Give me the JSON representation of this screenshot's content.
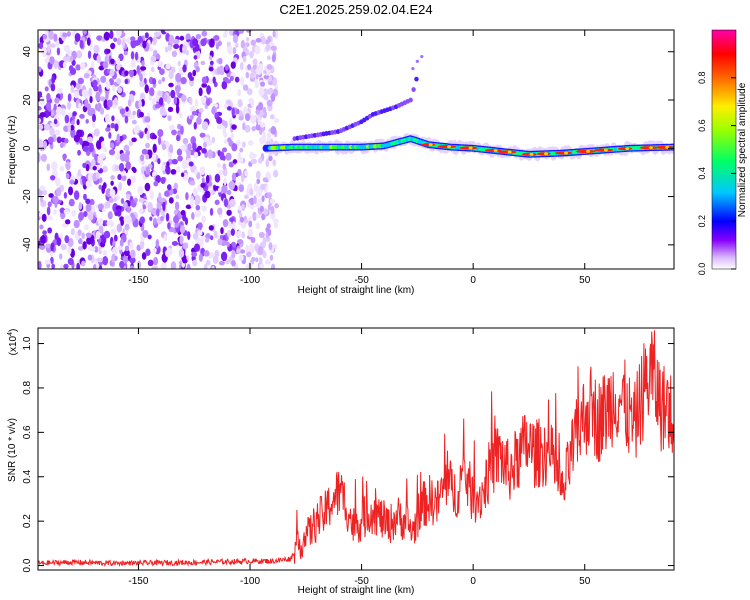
{
  "title": "C2E1.2025.259.02.04.E24",
  "colors": {
    "snr_line": "#ee2222",
    "noise": "#8a2be2",
    "frame": "#000000"
  },
  "chart_data": [
    {
      "type": "heatmap",
      "title": "C2E1.2025.259.02.04.E24",
      "xlabel": "Height of straight line (km)",
      "ylabel": "Frequency (Hz)",
      "xlim": [
        -195,
        90
      ],
      "ylim": [
        -50,
        49
      ],
      "xticks": [
        -150,
        -100,
        -50,
        0,
        50
      ],
      "yticks": [
        -40,
        -20,
        0,
        20,
        40
      ],
      "colorbar": {
        "label": "Normalized spectral amplitude",
        "range": [
          0,
          1
        ],
        "ticks": [
          0.0,
          0.2,
          0.4,
          0.6,
          0.8
        ],
        "colors": [
          "#ffffff",
          "#d8b4ff",
          "#8800ff",
          "#0000ff",
          "#00c8ff",
          "#00ff66",
          "#99ff00",
          "#ffee00",
          "#ff6600",
          "#ff0000",
          "#ff00aa"
        ]
      },
      "features": [
        {
          "name": "noise region",
          "x_range": [
            -195,
            -90
          ],
          "freq_range": [
            -50,
            49
          ],
          "amplitude": 0.1
        },
        {
          "name": "main ridge",
          "x": [
            -93,
            -80,
            -65,
            -50,
            -40,
            -32,
            -28,
            -20,
            -10,
            0,
            10,
            25,
            40,
            55,
            70,
            90
          ],
          "freq": [
            0,
            0.5,
            0.5,
            0.5,
            1,
            3,
            4,
            1.5,
            0.5,
            0,
            -1,
            -2.5,
            -2,
            -1,
            0,
            0.5
          ],
          "amplitude": 0.6
        },
        {
          "name": "upper branch",
          "x": [
            -80,
            -60,
            -50,
            -45,
            -35,
            -28,
            -25
          ],
          "freq": [
            4,
            7,
            11,
            14,
            17,
            20,
            30
          ],
          "amplitude": 0.3
        }
      ]
    },
    {
      "type": "line",
      "xlabel": "Height of straight line (km)",
      "ylabel": "SNR (10 * v/v)",
      "multiplier_label": "(x10",
      "multiplier_exponent": "4",
      "multiplier_suffix": ")",
      "xlim": [
        -195,
        90
      ],
      "ylim": [
        -0.02,
        1.07
      ],
      "xticks": [
        -150,
        -100,
        -50,
        0,
        50
      ],
      "yticks": [
        0.0,
        0.2,
        0.4,
        0.6,
        0.8,
        1.0
      ],
      "series": [
        {
          "name": "SNR",
          "x": [
            -195,
            -180,
            -160,
            -140,
            -120,
            -100,
            -90,
            -82,
            -78,
            -74,
            -70,
            -66,
            -63,
            -60,
            -57,
            -54,
            -50,
            -46,
            -42,
            -38,
            -34,
            -30,
            -27,
            -24,
            -20,
            -16,
            -12,
            -8,
            -4,
            0,
            4,
            8,
            12,
            16,
            20,
            24,
            28,
            32,
            36,
            40,
            44,
            48,
            52,
            56,
            60,
            64,
            68,
            72,
            76,
            80,
            84,
            90
          ],
          "values": [
            0.01,
            0.015,
            0.01,
            0.012,
            0.015,
            0.02,
            0.02,
            0.03,
            0.09,
            0.14,
            0.2,
            0.24,
            0.3,
            0.33,
            0.28,
            0.18,
            0.2,
            0.25,
            0.22,
            0.18,
            0.22,
            0.2,
            0.15,
            0.25,
            0.3,
            0.28,
            0.38,
            0.32,
            0.42,
            0.3,
            0.32,
            0.45,
            0.5,
            0.42,
            0.48,
            0.55,
            0.5,
            0.52,
            0.47,
            0.32,
            0.5,
            0.63,
            0.72,
            0.65,
            0.7,
            0.78,
            0.72,
            0.62,
            0.78,
            0.88,
            0.72,
            0.68
          ]
        }
      ]
    }
  ]
}
